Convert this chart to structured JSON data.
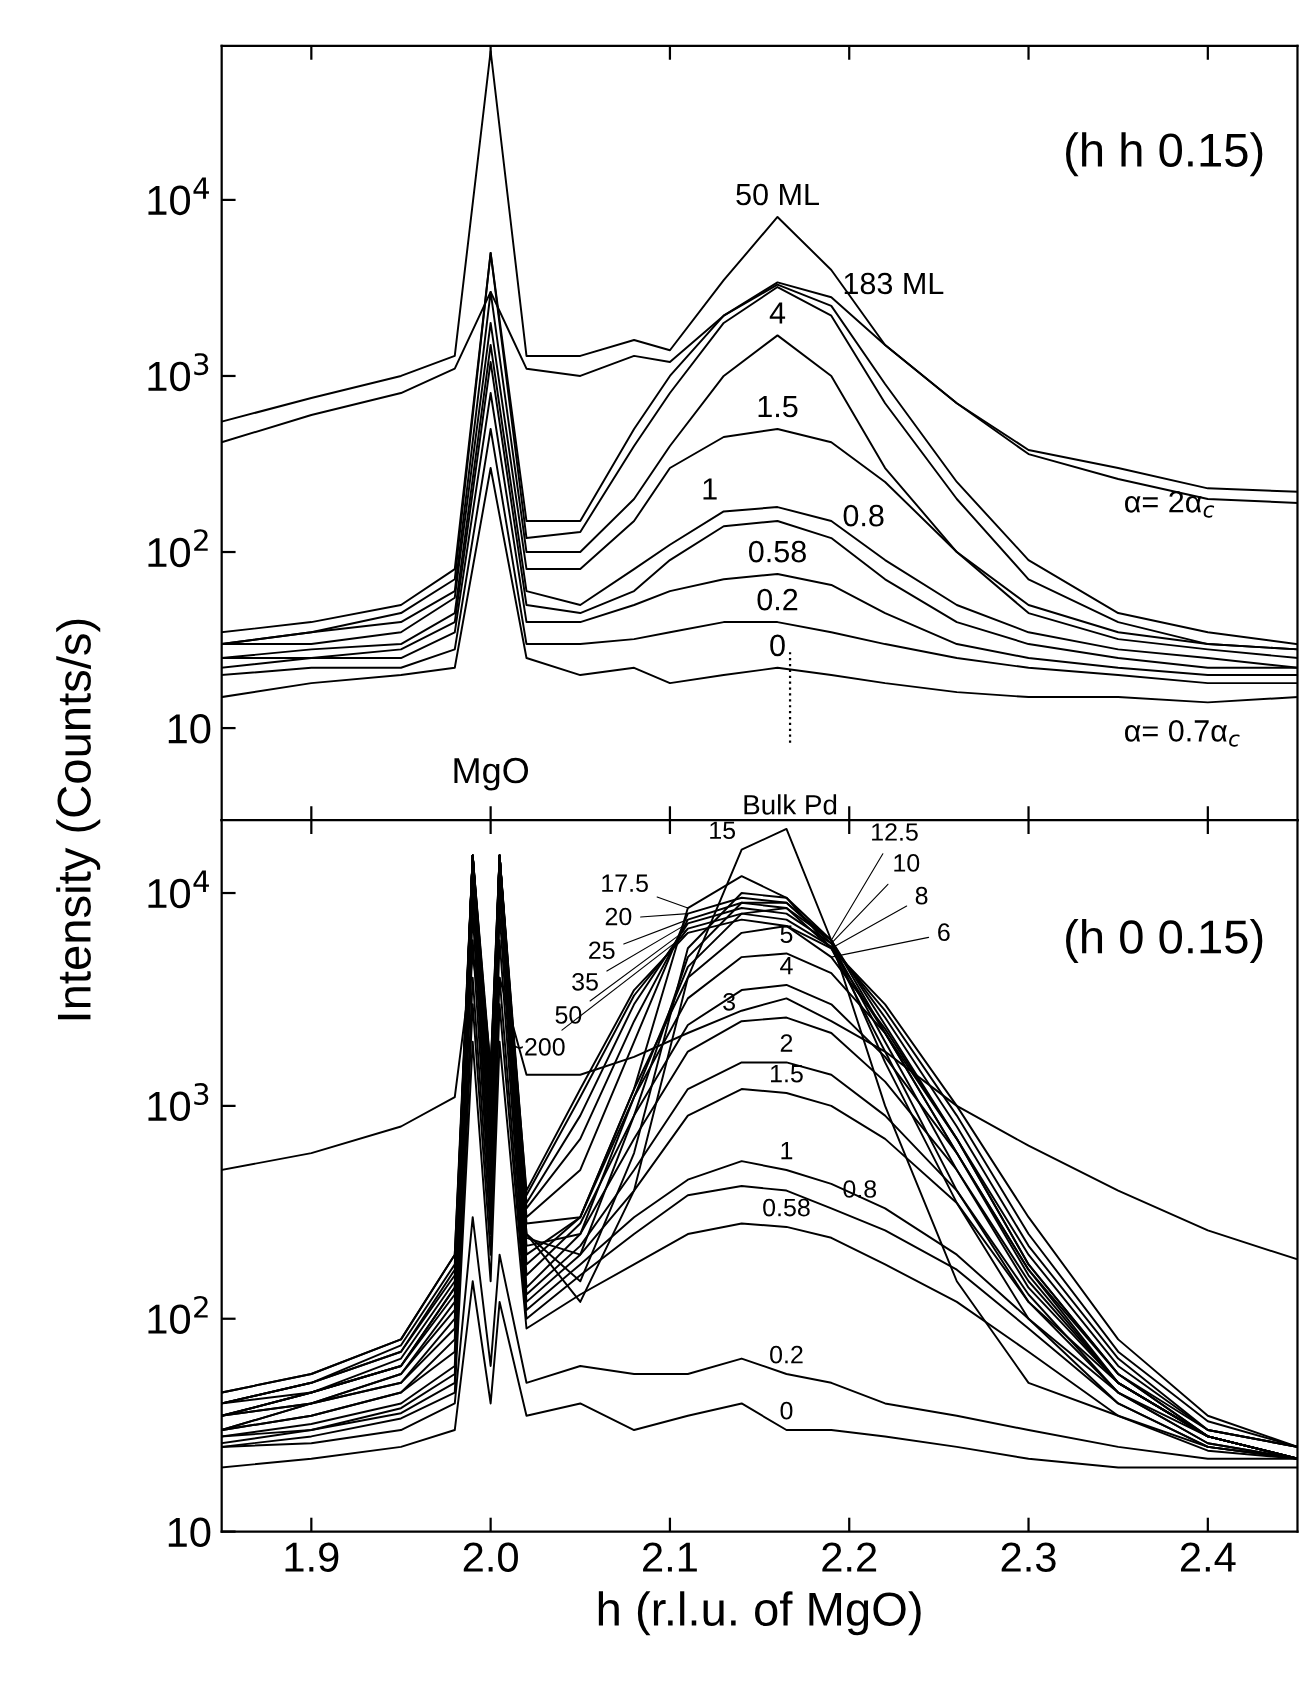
{
  "chart_data": [
    {
      "type": "line",
      "ylabel": "Intensity (Counts/s)",
      "log": "y",
      "grid": false,
      "legend": false,
      "tick_labels": "y",
      "xlim": [
        1.85,
        2.45
      ],
      "xticks": [
        {
          "value": 1.9,
          "label": null
        },
        {
          "value": 2.0,
          "label": null
        },
        {
          "value": 2.1,
          "label": null
        },
        {
          "value": 2.2,
          "label": null
        },
        {
          "value": 2.3,
          "label": null
        },
        {
          "value": 2.4,
          "label": null
        }
      ],
      "ylim": [
        3,
        75000
      ],
      "yticks": [
        10,
        {
          "value": 100,
          "label": "10$^{2}$"
        },
        {
          "value": 1000,
          "label": "10$^{3}$"
        },
        {
          "value": 10000,
          "label": "10$^{4}$"
        }
      ],
      "x": [
        1.85,
        1.9,
        1.95,
        1.98,
        2.0,
        2.02,
        2.05,
        2.08,
        2.1,
        2.13,
        2.16,
        2.19,
        2.22,
        2.26,
        2.3,
        2.35,
        2.4,
        2.45
      ],
      "series": [
        {
          "color": "#000000",
          "values": [
            550,
            750,
            1000,
            1300,
            70000,
            1300,
            1300,
            1600,
            1400,
            3500,
            8000,
            4000,
            1500,
            700,
            380,
            300,
            230,
            220
          ]
        },
        {
          "color": "#000000",
          "values": [
            420,
            600,
            800,
            1100,
            3000,
            1100,
            1000,
            1300,
            1200,
            2200,
            3400,
            2800,
            1500,
            700,
            360,
            260,
            200,
            190
          ]
        },
        {
          "color": "#000000",
          "values": [
            35,
            40,
            50,
            80,
            5000,
            150,
            150,
            500,
            1000,
            2200,
            3300,
            2500,
            900,
            250,
            90,
            45,
            35,
            30
          ]
        },
        {
          "color": "#000000",
          "values": [
            30,
            35,
            45,
            70,
            5000,
            120,
            130,
            400,
            800,
            2000,
            3200,
            2200,
            700,
            200,
            70,
            40,
            30,
            28
          ]
        },
        {
          "color": "#000000",
          "values": [
            30,
            35,
            40,
            60,
            3000,
            100,
            100,
            200,
            400,
            1000,
            1700,
            1000,
            300,
            100,
            50,
            35,
            30,
            28
          ]
        },
        {
          "color": "#000000",
          "values": [
            30,
            30,
            35,
            55,
            2000,
            80,
            80,
            150,
            300,
            450,
            500,
            420,
            250,
            100,
            45,
            32,
            28,
            25
          ]
        },
        {
          "color": "#000000",
          "values": [
            25,
            28,
            30,
            45,
            1500,
            60,
            50,
            80,
            110,
            170,
            180,
            150,
            90,
            50,
            35,
            28,
            25,
            22
          ]
        },
        {
          "color": "#000000",
          "values": [
            25,
            25,
            28,
            40,
            1200,
            50,
            45,
            60,
            90,
            140,
            150,
            120,
            70,
            40,
            30,
            25,
            22,
            22
          ]
        },
        {
          "color": "#000000",
          "values": [
            22,
            25,
            25,
            35,
            800,
            40,
            40,
            50,
            60,
            70,
            75,
            65,
            45,
            30,
            25,
            22,
            20,
            20
          ]
        },
        {
          "color": "#000000",
          "values": [
            20,
            22,
            22,
            28,
            500,
            30,
            30,
            32,
            35,
            40,
            40,
            35,
            30,
            25,
            22,
            20,
            18,
            18
          ]
        },
        {
          "color": "#000000",
          "values": [
            15,
            18,
            20,
            22,
            300,
            25,
            20,
            22,
            18,
            20,
            22,
            20,
            18,
            16,
            15,
            15,
            14,
            15
          ]
        }
      ],
      "ref_lines": [
        {
          "axis": "x",
          "value": 2.167,
          "line_style": "dotted",
          "label": "Bulk Pd"
        }
      ],
      "annotations": [
        "(h h 0.15)",
        "MgO",
        {
          "text": "50 ML",
          "x": 2.16,
          "y": 8000
        },
        {
          "text": "183 ML",
          "x": 2.19,
          "y": 2500
        },
        {
          "text": "4",
          "x": 2.16,
          "y": 1700
        },
        {
          "text": "1.5",
          "x": 2.16,
          "y": 500
        },
        {
          "text": "1",
          "x": 2.13,
          "y": 170
        },
        {
          "text": "0.8",
          "x": 2.19,
          "y": 120
        },
        {
          "text": "0.58",
          "x": 2.16,
          "y": 75
        },
        {
          "text": "0.2",
          "x": 2.16,
          "y": 40
        },
        {
          "text": "0",
          "x": 2.16,
          "y": 22
        },
        {
          "text": "α= 2α$_{c}$",
          "x": 2.35,
          "y": 300
        },
        {
          "text": "α= 0.7α$_{c}$",
          "x": 2.35,
          "y": 15
        }
      ]
    },
    {
      "type": "line",
      "xlabel": "h (r.l.u. of MgO)",
      "log": "y",
      "grid": false,
      "legend": false,
      "xlim": [
        1.85,
        2.45
      ],
      "xticks": [
        1.9,
        {
          "value": 2.0,
          "label": "2.0"
        },
        2.1,
        2.2,
        2.3,
        2.4
      ],
      "ylim": [
        10,
        22000
      ],
      "yticks": [
        10,
        {
          "value": 100,
          "label": "10$^{2}$"
        },
        {
          "value": 1000,
          "label": "10$^{3}$"
        },
        {
          "value": 10000,
          "label": "10$^{4}$"
        }
      ],
      "x": [
        1.85,
        1.9,
        1.95,
        1.98,
        1.99,
        2.0,
        2.005,
        2.02,
        2.05,
        2.08,
        2.11,
        2.14,
        2.165,
        2.19,
        2.22,
        2.26,
        2.3,
        2.35,
        2.4,
        2.45
      ],
      "series": [
        {
          "color": "#000000",
          "values": [
            500,
            600,
            800,
            1100,
            5000,
            1500,
            4000,
            1400,
            1400,
            1700,
            2200,
            2800,
            3200,
            2500,
            1800,
            1000,
            650,
            400,
            260,
            190
          ]
        },
        {
          "color": "#000000",
          "values": [
            45,
            55,
            80,
            200,
            12000,
            1500,
            12000,
            400,
            1200,
            3500,
            6500,
            7500,
            7000,
            5500,
            3000,
            1000,
            300,
            80,
            35,
            25
          ]
        },
        {
          "color": "#000000",
          "values": [
            45,
            55,
            80,
            200,
            15000,
            1500,
            15000,
            380,
            1100,
            3300,
            6800,
            8000,
            7500,
            5600,
            2800,
            900,
            250,
            70,
            33,
            25
          ]
        },
        {
          "color": "#000000",
          "values": [
            40,
            50,
            75,
            180,
            15000,
            1400,
            15000,
            350,
            900,
            3000,
            7200,
            8500,
            8000,
            5800,
            2600,
            800,
            220,
            65,
            30,
            25
          ]
        },
        {
          "color": "#000000",
          "values": [
            40,
            50,
            70,
            170,
            15000,
            1300,
            15000,
            330,
            700,
            2500,
            7500,
            9000,
            8500,
            6000,
            2400,
            700,
            200,
            60,
            30,
            25
          ]
        },
        {
          "color": "#000000",
          "values": [
            40,
            50,
            70,
            160,
            15000,
            1200,
            15000,
            300,
            500,
            2000,
            8000,
            9500,
            9000,
            6000,
            2200,
            600,
            170,
            55,
            30,
            25
          ]
        },
        {
          "color": "#000000",
          "values": [
            40,
            45,
            65,
            150,
            15000,
            1100,
            15000,
            280,
            300,
            1200,
            8500,
            12000,
            9500,
            5500,
            1800,
            400,
            120,
            50,
            28,
            22
          ]
        },
        {
          "color": "#000000",
          "values": [
            35,
            45,
            60,
            140,
            15000,
            1000,
            15000,
            250,
            120,
            400,
            4000,
            16000,
            20000,
            6000,
            1000,
            150,
            50,
            35,
            25,
            22
          ]
        },
        {
          "color": "#000000",
          "values": [
            35,
            45,
            60,
            140,
            15000,
            1000,
            15000,
            250,
            150,
            600,
            5500,
            10000,
            9500,
            6000,
            1600,
            350,
            100,
            45,
            28,
            22
          ]
        },
        {
          "color": "#000000",
          "values": [
            35,
            45,
            60,
            130,
            15000,
            900,
            15000,
            240,
            200,
            900,
            5000,
            9000,
            9000,
            5800,
            2000,
            500,
            140,
            50,
            28,
            22
          ]
        },
        {
          "color": "#000000",
          "values": [
            35,
            40,
            55,
            120,
            15000,
            800,
            15000,
            220,
            250,
            1100,
            4500,
            8000,
            8500,
            5500,
            2200,
            600,
            160,
            50,
            28,
            22
          ]
        },
        {
          "color": "#000000",
          "values": [
            35,
            40,
            55,
            110,
            15000,
            700,
            15000,
            200,
            300,
            1200,
            4000,
            6500,
            7000,
            5000,
            2300,
            700,
            180,
            55,
            28,
            22
          ]
        },
        {
          "color": "#000000",
          "values": [
            30,
            40,
            50,
            100,
            15000,
            600,
            15000,
            180,
            300,
            1100,
            3200,
            5000,
            5200,
            4200,
            2200,
            700,
            180,
            55,
            28,
            22
          ]
        },
        {
          "color": "#000000",
          "values": [
            30,
            40,
            50,
            90,
            12000,
            500,
            12000,
            160,
            280,
            900,
            2400,
            3500,
            3700,
            3000,
            1700,
            600,
            170,
            50,
            28,
            22
          ]
        },
        {
          "color": "#000000",
          "values": [
            30,
            35,
            45,
            80,
            10000,
            400,
            10000,
            140,
            250,
            700,
            1800,
            2500,
            2600,
            2200,
            1300,
            500,
            150,
            50,
            28,
            22
          ]
        },
        {
          "color": "#000000",
          "values": [
            30,
            35,
            45,
            70,
            8000,
            350,
            8000,
            130,
            220,
            500,
            1200,
            1600,
            1600,
            1400,
            900,
            400,
            130,
            45,
            26,
            22
          ]
        },
        {
          "color": "#000000",
          "values": [
            28,
            32,
            40,
            60,
            6000,
            300,
            6000,
            120,
            200,
            400,
            900,
            1200,
            1150,
            1000,
            700,
            350,
            120,
            45,
            26,
            22
          ]
        },
        {
          "color": "#000000",
          "values": [
            28,
            30,
            38,
            55,
            4000,
            250,
            4000,
            110,
            180,
            300,
            450,
            550,
            500,
            430,
            330,
            200,
            100,
            40,
            25,
            22
          ]
        },
        {
          "color": "#000000",
          "values": [
            26,
            30,
            36,
            50,
            3000,
            200,
            3000,
            100,
            160,
            250,
            380,
            420,
            400,
            330,
            260,
            170,
            90,
            40,
            25,
            22
          ]
        },
        {
          "color": "#000000",
          "values": [
            25,
            28,
            34,
            45,
            2000,
            150,
            2000,
            90,
            130,
            180,
            250,
            280,
            270,
            240,
            180,
            120,
            70,
            35,
            24,
            22
          ]
        },
        {
          "color": "#000000",
          "values": [
            25,
            26,
            30,
            40,
            300,
            60,
            200,
            50,
            60,
            55,
            55,
            65,
            55,
            50,
            40,
            35,
            30,
            25,
            22,
            22
          ]
        },
        {
          "color": "#000000",
          "values": [
            20,
            22,
            25,
            30,
            150,
            40,
            120,
            35,
            40,
            30,
            35,
            40,
            30,
            30,
            28,
            25,
            22,
            20,
            20,
            20
          ]
        }
      ],
      "annotations": [
        "(h 0 0.15)",
        {
          "text": "15",
          "x": 2.14,
          "y": 16000
        },
        {
          "text": "12.5",
          "x": 2.19,
          "y": 6000
        },
        {
          "text": "17.5",
          "x": 2.11,
          "y": 8500
        },
        {
          "text": "10",
          "x": 2.19,
          "y": 5800
        },
        {
          "text": "20",
          "x": 2.11,
          "y": 8000
        },
        {
          "text": "8",
          "x": 2.19,
          "y": 5500
        },
        {
          "text": "25",
          "x": 2.11,
          "y": 7500
        },
        {
          "text": "35",
          "x": 2.11,
          "y": 7200
        },
        {
          "text": "6",
          "x": 2.19,
          "y": 5000
        },
        {
          "text": "5",
          "x": 2.165,
          "y": 5200
        },
        {
          "text": "50",
          "x": 2.11,
          "y": 6800
        },
        {
          "text": "4",
          "x": 2.165,
          "y": 3700
        },
        {
          "text": "~200",
          "x": 2.11,
          "y": 6500
        },
        {
          "text": "3",
          "x": 2.14,
          "y": 2500
        },
        {
          "text": "2",
          "x": 2.165,
          "y": 1600
        },
        {
          "text": "1.5",
          "x": 2.165,
          "y": 1150
        },
        {
          "text": "1",
          "x": 2.165,
          "y": 500
        },
        {
          "text": "0.8",
          "x": 2.19,
          "y": 330
        },
        {
          "text": "0.58",
          "x": 2.165,
          "y": 270
        },
        {
          "text": "0.2",
          "x": 2.165,
          "y": 55
        },
        {
          "text": "0",
          "x": 2.165,
          "y": 30
        }
      ]
    }
  ]
}
